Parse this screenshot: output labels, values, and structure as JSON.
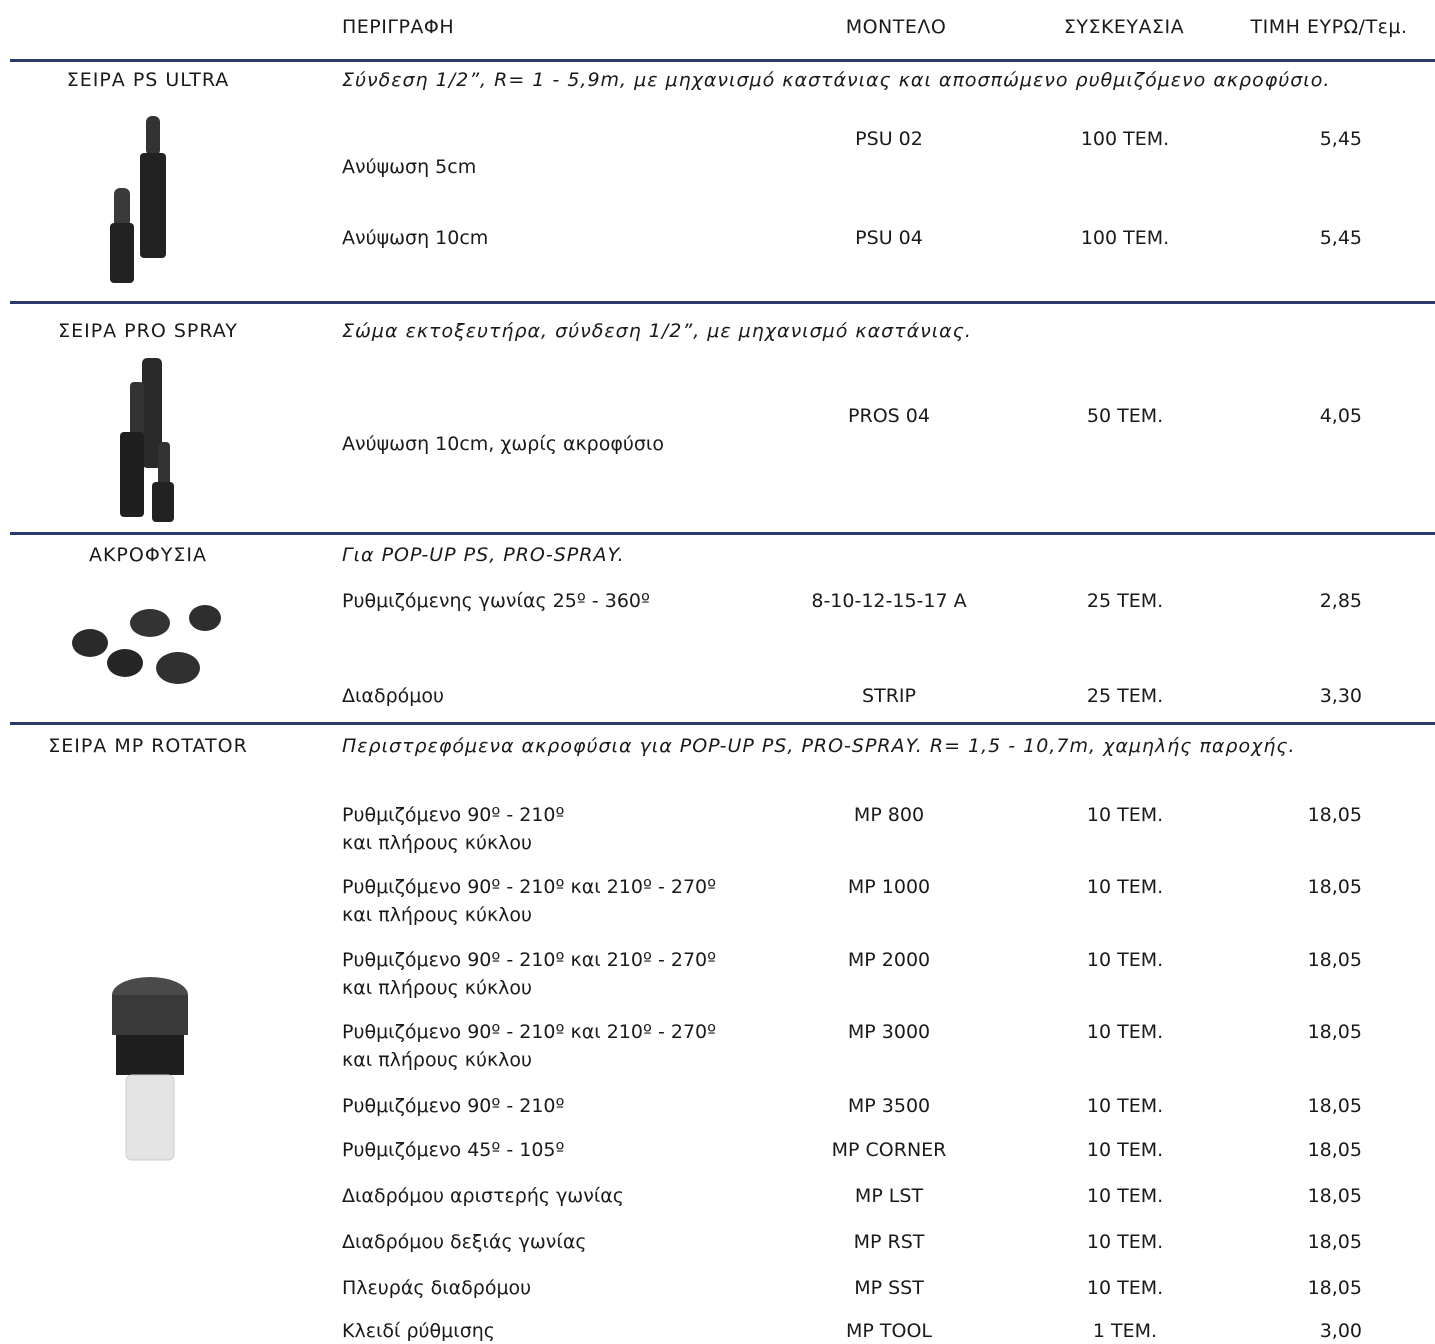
{
  "header": {
    "columns": [
      "ΠΕΡΙΓΡΑΦΗ",
      "ΜΟΝΤΕΛΟ",
      "ΣΥΣΚΕΥΑΣΙΑ",
      "ΤΙΜΗ ΕΥΡΩ/Τεμ."
    ]
  },
  "sections": [
    {
      "name": "ΣΕΙΡΑ PS ULTRA",
      "description": "Σύνδεση 1/2”, R= 1 - 5,9m, με μηχανισμό καστάνιας και αποσπώμενο ρυθμιζόμενο ακροφύσιο.",
      "rows": [
        {
          "description": [
            "Ανύψωση 5cm"
          ],
          "model": "PSU 02",
          "package": "100 ΤΕΜ.",
          "price": "5,45"
        },
        {
          "description": [
            "Ανύψωση 10cm"
          ],
          "model": "PSU 04",
          "package": "100 ΤΕΜ.",
          "price": "5,45"
        }
      ]
    },
    {
      "name": "ΣΕΙΡΑ PRO SPRAY",
      "description": "Σώμα εκτοξευτήρα, σύνδεση 1/2”, με μηχανισμό καστάνιας.",
      "rows": [
        {
          "description": [
            "Ανύψωση 10cm, χωρίς ακροφύσιο"
          ],
          "model": "PROS 04",
          "package": "50 ΤΕΜ.",
          "price": "4,05"
        }
      ]
    },
    {
      "name": "ΑΚΡΟΦΥΣΙΑ",
      "description": "Για POP-UP PS, PRO-SPRAY.",
      "rows": [
        {
          "description": [
            "Ρυθμιζόμενης γωνίας 25º - 360º"
          ],
          "model": "8-10-12-15-17 A",
          "package": "25 ΤΕΜ.",
          "price": "2,85"
        },
        {
          "description": [
            "Διαδρόμου"
          ],
          "model": "STRIP",
          "package": "25 ΤΕΜ.",
          "price": "3,30"
        }
      ]
    },
    {
      "name": "ΣΕΙΡΑ MP ROTATOR",
      "description": "Περιστρεφόμενα ακροφύσια για POP-UP PS, PRO-SPRAY. R= 1,5 - 10,7m, χαμηλής παροχής.",
      "rows": [
        {
          "description": [
            "Ρυθμιζόμενο 90º - 210º",
            "και πλήρους κύκλου"
          ],
          "model": "MP 800",
          "package": "10 ΤΕΜ.",
          "price": "18,05"
        },
        {
          "description": [
            "Ρυθμιζόμενο 90º - 210º και 210º - 270º",
            "και πλήρους κύκλου"
          ],
          "model": "MP 1000",
          "package": "10 ΤΕΜ.",
          "price": "18,05"
        },
        {
          "description": [
            "Ρυθμιζόμενο 90º - 210º και 210º - 270º",
            "και πλήρους κύκλου"
          ],
          "model": "MP 2000",
          "package": "10 ΤΕΜ.",
          "price": "18,05"
        },
        {
          "description": [
            "Ρυθμιζόμενο 90º - 210º και 210º - 270º",
            "και πλήρους κύκλου"
          ],
          "model": "MP 3000",
          "package": "10 ΤΕΜ.",
          "price": "18,05"
        },
        {
          "description": [
            "Ρυθμιζόμενο 90º - 210º"
          ],
          "model": "MP 3500",
          "package": "10 ΤΕΜ.",
          "price": "18,05"
        },
        {
          "description": [
            "Ρυθμιζόμενο 45º - 105º"
          ],
          "model": "MP CORNER",
          "package": "10 ΤΕΜ.",
          "price": "18,05"
        },
        {
          "description": [
            "Διαδρόμου αριστερής γωνίας"
          ],
          "model": "MP LST",
          "package": "10 ΤΕΜ.",
          "price": "18,05"
        },
        {
          "description": [
            "Διαδρόμου δεξιάς γωνίας"
          ],
          "model": "MP RST",
          "package": "10 ΤΕΜ.",
          "price": "18,05"
        },
        {
          "description": [
            "Πλευράς διαδρόμου"
          ],
          "model": "MP SST",
          "package": "10 ΤΕΜ.",
          "price": "18,05"
        },
        {
          "description": [
            "Κλειδί ρύθμισης"
          ],
          "model": "MP TOOL",
          "package": "1 ΤΕΜ.",
          "price": "3,00"
        }
      ]
    }
  ]
}
